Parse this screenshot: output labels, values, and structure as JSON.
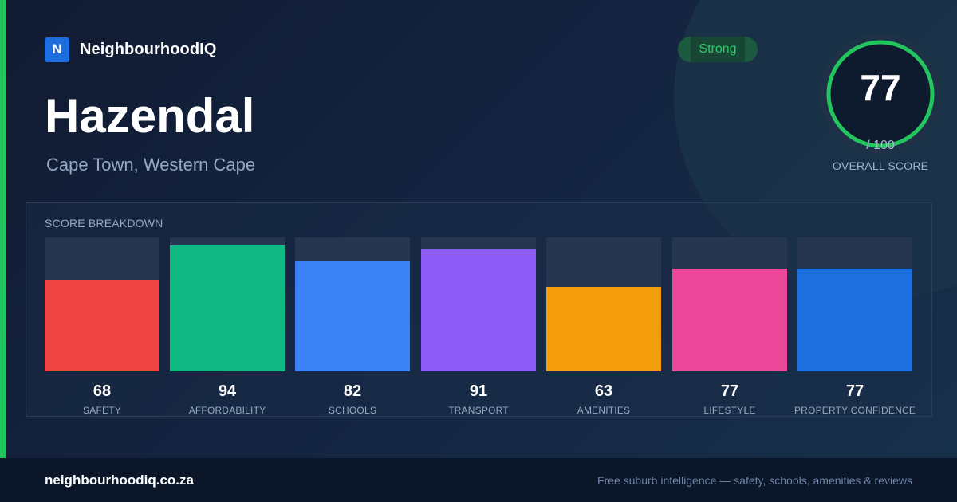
{
  "brand": {
    "logo_letter": "N",
    "name": "NeighbourhoodIQ",
    "accent_color": "#22c55e",
    "logo_color": "#1d6fe0"
  },
  "suburb": {
    "name": "Hazendal",
    "location": "Cape Town, Western Cape"
  },
  "rating": {
    "badge": "Strong",
    "badge_color": "#31c866",
    "overall_score": 77,
    "overall_score_text": "77",
    "max_text": "/ 100",
    "label": "OVERALL SCORE",
    "ring_color": "#22c55e"
  },
  "breakdown": {
    "title": "SCORE BREAKDOWN",
    "max": 100,
    "items": [
      {
        "label": "SAFETY",
        "value": 68,
        "value_text": "68",
        "color": "#ef4444"
      },
      {
        "label": "AFFORDABILITY",
        "value": 94,
        "value_text": "94",
        "color": "#10b981"
      },
      {
        "label": "SCHOOLS",
        "value": 82,
        "value_text": "82",
        "color": "#3b82f6"
      },
      {
        "label": "TRANSPORT",
        "value": 91,
        "value_text": "91",
        "color": "#8b5cf6"
      },
      {
        "label": "AMENITIES",
        "value": 63,
        "value_text": "63",
        "color": "#f59e0b"
      },
      {
        "label": "LIFESTYLE",
        "value": 77,
        "value_text": "77",
        "color": "#ec4899"
      },
      {
        "label": "PROPERTY CONFIDENCE",
        "value": 77,
        "value_text": "77",
        "color": "#1d6fe0"
      }
    ]
  },
  "footer": {
    "url": "neighbourhoodiq.co.za",
    "tagline": "Free suburb intelligence — safety, schools, amenities & reviews"
  }
}
